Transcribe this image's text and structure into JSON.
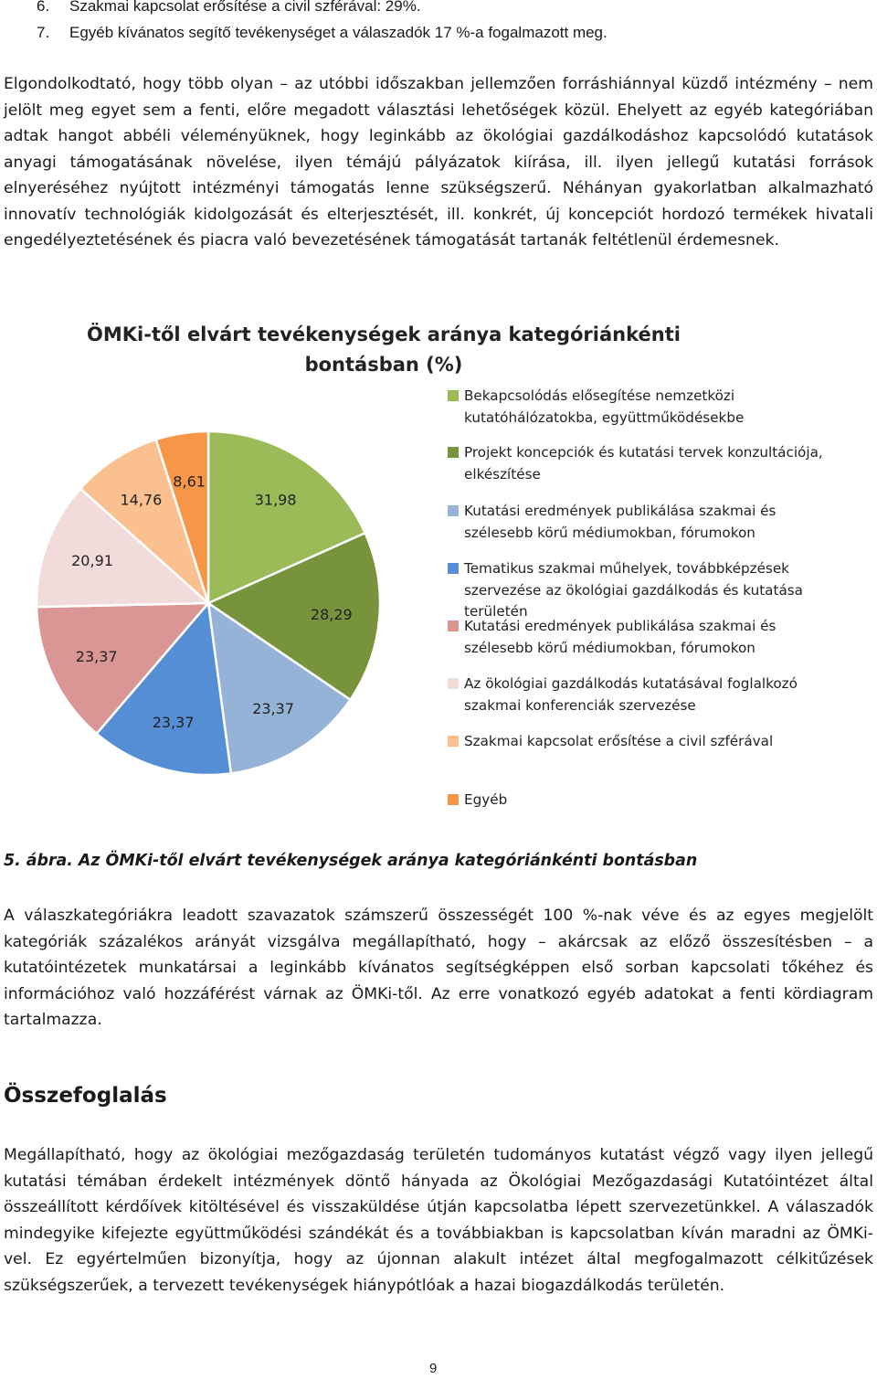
{
  "list_items": [
    {
      "num": "6.",
      "text": "Szakmai kapcsolat erősítése a civil szférával: 29%."
    },
    {
      "num": "7.",
      "text": "Egyéb kívánatos segítő tevékenységet a válaszadók 17 %-a fogalmazott meg."
    }
  ],
  "paragraph1": "Elgondolkodtató, hogy több olyan – az utóbbi időszakban jellemzően forráshiánnyal küzdő intézmény – nem jelölt meg egyet sem a fenti, előre megadott választási lehetőségek közül. Ehelyett az egyéb kategóriában adtak hangot abbéli véleményüknek, hogy leginkább az ökológiai gazdálkodáshoz kapcsolódó kutatások anyagi támogatásának növelése, ilyen témájú pályázatok kiírása, ill. ilyen jellegű kutatási források elnyeréséhez nyújtott intézményi támogatás lenne szükségszerű. Néhányan gyakorlatban alkalmazható innovatív technológiák kidolgozását és elterjesztését, ill. konkrét, új koncepciót hordozó termékek hivatali engedélyeztetésének és piacra való bevezetésének támogatását tartanák feltétlenül érdemesnek.",
  "chart_data": {
    "type": "pie",
    "title": "ÖMKi-től elvárt tevékenységek aránya kategóriánkénti bontásban (%)",
    "series": [
      {
        "name": "Bekapcsolódás elősegítése nemzetközi kutatóhálózatokba, együttműködésekbe",
        "value": 31.98,
        "label": "31,98",
        "color": "#9bbb59"
      },
      {
        "name": "Projekt koncepciók és kutatási tervek konzultációja, elkészítése",
        "value": 28.29,
        "label": "28,29",
        "color": "#77933c"
      },
      {
        "name": "Kutatási eredmények publikálása szakmai és szélesebb körű médiumokban, fórumokon",
        "value": 23.37,
        "label": "23,37",
        "color": "#95b3d7"
      },
      {
        "name": "Tematikus szakmai műhelyek, továbbképzések szervezése az ökológiai gazdálkodás és kutatása területén",
        "value": 23.37,
        "label": "23,37",
        "color": "#558ed5"
      },
      {
        "name": "Kutatási eredmények publikálása szakmai és szélesebb körű médiumokban, fórumokon",
        "value": 23.37,
        "label": "23,37",
        "color": "#d99694"
      },
      {
        "name": "Az ökológiai gazdálkodás kutatásával foglalkozó szakmai konferenciák szervezése",
        "value": 20.91,
        "label": "20,91",
        "color": "#f2dcdb"
      },
      {
        "name": "Szakmai kapcsolat erősítése a civil szférával",
        "value": 14.76,
        "label": "14,76",
        "color": "#fac090"
      },
      {
        "name": "Egyéb",
        "value": 8.61,
        "label": "8,61",
        "color": "#f79646"
      }
    ],
    "legend_position": "right"
  },
  "chart_title_line1": "ÖMKi-től elvárt tevékenységek aránya kategóriánkénti",
  "chart_title_line2": "bontásban (%)",
  "legend": [
    "Bekapcsolódás elősegítése nemzetközi kutatóhálózatokba, együttműködésekbe",
    "Projekt koncepciók és kutatási tervek konzultációja, elkészítése",
    "Kutatási eredmények publikálása szakmai és szélesebb körű médiumokban, fórumokon",
    "Tematikus szakmai műhelyek, továbbképzések szervezése az ökológiai gazdálkodás és kutatása területén",
    "Kutatási eredmények publikálása szakmai és szélesebb körű médiumokban, fórumokon",
    "Az ökológiai gazdálkodás kutatásával foglalkozó szakmai konferenciák szervezése",
    "Szakmai kapcsolat erősítése a civil szférával",
    "Egyéb"
  ],
  "caption": "5. ábra. Az ÖMKi-től elvárt tevékenységek aránya kategóriánkénti bontásban",
  "paragraph2": "A válaszkategóriákra leadott szavazatok számszerű összességét 100 %-nak véve és az egyes megjelölt kategóriák százalékos arányát vizsgálva megállapítható, hogy – akárcsak az előző összesítésben – a kutatóintézetek munkatársai a leginkább kívánatos segítségképpen első sorban kapcsolati tőkéhez és információhoz való hozzáférést várnak az ÖMKi-től. Az erre vonatkozó egyéb adatokat a fenti kördiagram tartalmazza.",
  "heading": "Összefoglalás",
  "paragraph3": "Megállapítható, hogy az ökológiai mezőgazdaság területén tudományos kutatást végző vagy ilyen jellegű kutatási témában érdekelt intézmények döntő hányada az Ökológiai Mezőgazdasági Kutatóintézet által összeállított kérdőívek kitöltésével és visszaküldése útján kapcsolatba lépett szervezetünkkel. A válaszadók mindegyike kifejezte együttműködési szándékát és a továbbiakban is kapcsolatban kíván maradni az ÖMKi-vel. Ez egyértelműen bizonyítja, hogy az újonnan alakult intézet által megfogalmazott célkitűzések szükségszerűek, a tervezett tevékenységek hiánypótlóak a hazai biogazdálkodás területén.",
  "page_number": "9"
}
